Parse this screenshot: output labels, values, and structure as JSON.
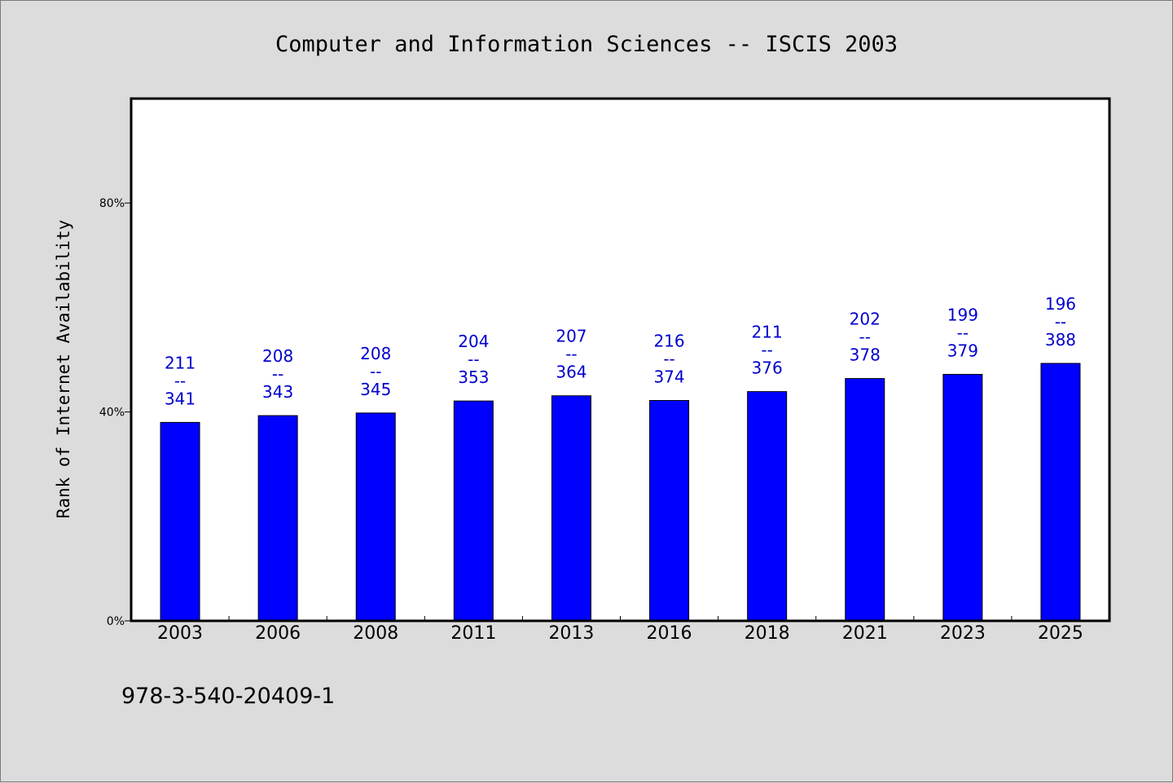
{
  "chart_data": {
    "type": "bar",
    "title": "Computer and Information Sciences -- ISCIS 2003",
    "xlabel": "",
    "ylabel": "Rank of Internet Availability",
    "categories": [
      "2003",
      "2006",
      "2008",
      "2011",
      "2013",
      "2016",
      "2018",
      "2021",
      "2023",
      "2025"
    ],
    "values": [
      38,
      39.3,
      39.8,
      42.1,
      43.1,
      42.2,
      43.9,
      46.4,
      47.2,
      49.3
    ],
    "data_labels": [
      [
        "211",
        "--",
        "341"
      ],
      [
        "208",
        "--",
        "343"
      ],
      [
        "208",
        "--",
        "345"
      ],
      [
        "204",
        "--",
        "353"
      ],
      [
        "207",
        "--",
        "364"
      ],
      [
        "216",
        "--",
        "374"
      ],
      [
        "211",
        "--",
        "376"
      ],
      [
        "202",
        "--",
        "378"
      ],
      [
        "199",
        "--",
        "379"
      ],
      [
        "196",
        "--",
        "388"
      ]
    ],
    "ylim": [
      0,
      100
    ],
    "yticks": [
      0,
      40,
      80
    ],
    "ytick_labels": [
      "0%",
      "40%",
      "80%"
    ],
    "grid": false,
    "legend": "none",
    "bar_color": "#0000ff",
    "label_color": "#0000cc",
    "background_color": "#dcdcdc",
    "plot_background": "#ffffff"
  },
  "footer": {
    "isbn": "978-3-540-20409-1"
  }
}
